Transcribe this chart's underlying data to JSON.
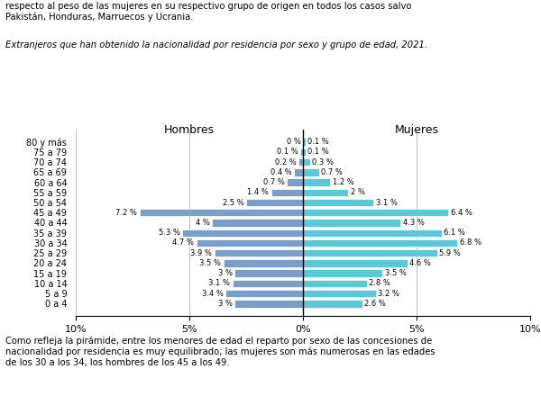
{
  "age_groups": [
    "80 y más",
    "75 a 79",
    "70 a 74",
    "65 a 69",
    "60 a 64",
    "55 a 59",
    "50 a 54",
    "45 a 49",
    "40 a 44",
    "35 a 39",
    "30 a 34",
    "25 a 29",
    "20 a 24",
    "15 a 19",
    "10 a 14",
    "5 a 9",
    "0 a 4"
  ],
  "hombres": [
    0.0,
    0.1,
    0.2,
    0.4,
    0.7,
    1.4,
    2.5,
    7.2,
    4.0,
    5.3,
    4.7,
    3.9,
    3.5,
    3.0,
    3.1,
    3.4,
    3.0
  ],
  "mujeres": [
    0.1,
    0.1,
    0.3,
    0.7,
    1.2,
    2.0,
    3.1,
    6.4,
    4.3,
    6.1,
    6.8,
    5.9,
    4.6,
    3.5,
    2.8,
    3.2,
    2.6
  ],
  "hombres_labels": [
    "0 %",
    "0.1 %",
    "0.2 %",
    "0.4 %",
    "0.7 %",
    "1.4 %",
    "2.5 %",
    "7.2 %",
    "4 %",
    "5.3 %",
    "4.7 %",
    "3.9 %",
    "3.5 %",
    "3 %",
    "3.1 %",
    "3.4 %",
    "3 %"
  ],
  "mujeres_labels": [
    "0.1 %",
    "0.1 %",
    "0.3 %",
    "0.7 %",
    "1.2 %",
    "2 %",
    "3.1 %",
    "6.4 %",
    "4.3 %",
    "6.1 %",
    "6.8 %",
    "5.9 %",
    "4.6 %",
    "3.5 %",
    "2.8 %",
    "3.2 %",
    "2.6 %"
  ],
  "color_hombres": "#7b9ec8",
  "color_mujeres": "#5bc8d8",
  "title_hombres": "Hombres",
  "title_mujeres": "Mujeres",
  "xlim": 10,
  "xticks": [
    -10,
    -5,
    0,
    5,
    10
  ],
  "xticklabels": [
    "10%",
    "5%",
    "0%",
    "5%",
    "10%"
  ],
  "top_text": "respecto al peso de las mujeres en su respectivo grupo de origen en todos los casos salvo\nPakistán, Honduras, Marruecos y Ucrania.",
  "italic_text": "Extranjeros que han obtenido la nacionalidad por residencia por sexo y grupo de edad, 2021.",
  "bottom_text": "Como refleja la pirámide, entre los menores de edad el reparto por sexo de las concesiones de\nnacionalidad por residencia es muy equilibrado; las mujeres son más numerosas en las edades\nde los 30 a los 34, los hombres de los 45 a los 49."
}
